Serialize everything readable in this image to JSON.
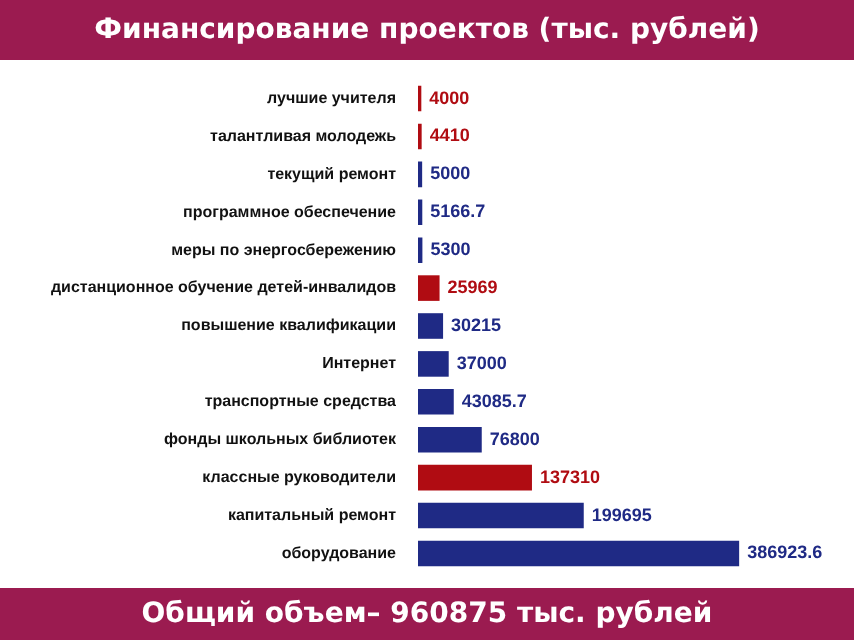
{
  "chart_data": {
    "type": "bar",
    "orientation": "horizontal",
    "title": "Финансирование проектов (тыс. рублей)",
    "categories": [
      "лучшие учителя",
      "талантливая молодежь",
      "текущий ремонт",
      "программное обеспечение",
      "меры по энергосбережению",
      "дистанционное обучение детей-инвалидов",
      "повышение квалификации",
      "Интернет",
      "транспортные средства",
      "фонды школьных библиотек",
      "классные руководители",
      "капитальный ремонт",
      "оборудование"
    ],
    "values": [
      4000,
      4410,
      5000,
      5166.7,
      5300,
      25969,
      30215,
      37000,
      43085.7,
      76800,
      137310,
      199695,
      386923.6
    ],
    "colors": [
      "#b00c12",
      "#b00c12",
      "#1f2a85",
      "#1f2a85",
      "#1f2a85",
      "#b00c12",
      "#1f2a85",
      "#1f2a85",
      "#1f2a85",
      "#1f2a85",
      "#b00c12",
      "#1f2a85",
      "#1f2a85"
    ],
    "data_labels": true,
    "legend": false,
    "annotations": [
      "Общий объем– 960875 тыс. рублей"
    ]
  }
}
